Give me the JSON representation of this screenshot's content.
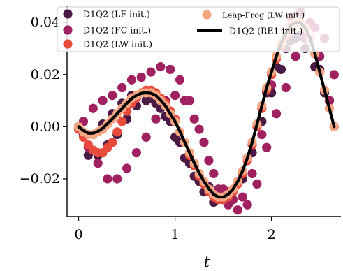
{
  "chart_data": {
    "type": "scatter",
    "title": "",
    "xlabel": "t",
    "ylabel": "",
    "xlim": [
      -0.12,
      2.72
    ],
    "ylim": [
      -0.0345,
      0.0465
    ],
    "xticks": [
      0,
      1,
      2
    ],
    "xtick_labels": [
      "0",
      "1",
      "2"
    ],
    "yticks": [
      -0.02,
      0.0,
      0.02,
      0.04
    ],
    "ytick_labels": [
      "−0.02",
      "0.00",
      "0.02",
      "0.04"
    ],
    "grid": false,
    "legend_position": "top",
    "series": [
      {
        "name": "D1Q2 (LF init.)",
        "kind": "markers",
        "color": "#4a1a45",
        "x": [
          0.0,
          0.05,
          0.1,
          0.15,
          0.2,
          0.25,
          0.3,
          0.35,
          0.4,
          0.45,
          0.5,
          0.55,
          0.6,
          0.65,
          0.7,
          0.75,
          0.8,
          0.85,
          0.9,
          0.95,
          1.0,
          1.05,
          1.1,
          1.15,
          1.2,
          1.25,
          1.3,
          1.35,
          1.4,
          1.45,
          1.5,
          1.55,
          1.6,
          1.65,
          1.7,
          1.75,
          1.8,
          1.85,
          1.9,
          1.95,
          2.0,
          2.05,
          2.1,
          2.15,
          2.2,
          2.25,
          2.3,
          2.35,
          2.4,
          2.45,
          2.5,
          2.55,
          2.6,
          2.65
        ],
        "values": [
          0.0,
          -0.003,
          -0.011,
          -0.003,
          -0.011,
          0.001,
          -0.007,
          0.005,
          -0.003,
          0.009,
          0.003,
          0.012,
          0.008,
          0.013,
          0.01,
          0.011,
          0.009,
          0.007,
          0.004,
          0.002,
          -0.004,
          -0.006,
          -0.012,
          -0.014,
          -0.019,
          -0.021,
          -0.025,
          -0.023,
          -0.029,
          -0.024,
          -0.027,
          -0.025,
          -0.028,
          -0.021,
          -0.02,
          -0.012,
          -0.01,
          0.001,
          0.002,
          0.013,
          0.013,
          0.023,
          0.022,
          0.03,
          0.033,
          0.034,
          0.035,
          0.03,
          0.034,
          0.023,
          0.022,
          0.013,
          0.01,
          0.0
        ]
      },
      {
        "name": "D1Q2 (FC init.)",
        "kind": "markers",
        "color": "#a0215f",
        "x": [
          0.0,
          0.05,
          0.1,
          0.15,
          0.2,
          0.25,
          0.3,
          0.35,
          0.4,
          0.45,
          0.5,
          0.55,
          0.6,
          0.65,
          0.7,
          0.75,
          0.8,
          0.85,
          0.9,
          0.95,
          1.0,
          1.05,
          1.1,
          1.15,
          1.2,
          1.25,
          1.3,
          1.35,
          1.4,
          1.45,
          1.5,
          1.55,
          1.6,
          1.65,
          1.7,
          1.75,
          1.8,
          1.85,
          1.9,
          1.95,
          2.0,
          2.05,
          2.1,
          2.15,
          2.2,
          2.25,
          2.3,
          2.35,
          2.4,
          2.45,
          2.5,
          2.55,
          2.6,
          2.65
        ],
        "values": [
          0.0,
          0.002,
          -0.008,
          0.007,
          -0.014,
          0.01,
          -0.02,
          0.012,
          -0.02,
          0.015,
          -0.016,
          0.018,
          -0.01,
          0.019,
          -0.004,
          0.021,
          0.003,
          0.023,
          0.01,
          0.022,
          0.012,
          0.018,
          0.01,
          0.01,
          0.003,
          -0.001,
          -0.006,
          -0.013,
          -0.018,
          -0.024,
          -0.024,
          -0.03,
          -0.028,
          -0.032,
          -0.027,
          -0.03,
          -0.018,
          -0.022,
          -0.003,
          -0.008,
          0.016,
          0.005,
          0.032,
          0.015,
          0.042,
          0.027,
          0.044,
          0.034,
          0.04,
          0.038,
          0.027,
          0.034,
          0.01,
          0.02
        ]
      },
      {
        "name": "D1Q2 (LW init.)",
        "kind": "markers",
        "color": "#e84a3c",
        "x": [
          0.0,
          0.05,
          0.1,
          0.15,
          0.2,
          0.25,
          0.3,
          0.35,
          0.4,
          0.45,
          0.5,
          0.55,
          0.6,
          0.65,
          0.7,
          0.75,
          0.8,
          0.85,
          0.9,
          0.95,
          1.0,
          1.05,
          1.1,
          1.15,
          1.2,
          1.25,
          1.3,
          1.35,
          1.4,
          1.45,
          1.5,
          1.55,
          1.6,
          1.65,
          1.7,
          1.75,
          1.8,
          1.85,
          1.9,
          1.95,
          2.0,
          2.05,
          2.1,
          2.15,
          2.2,
          2.25,
          2.3,
          2.35,
          2.4,
          2.45,
          2.5,
          2.55,
          2.6,
          2.65
        ],
        "values": [
          -0.001,
          -0.004,
          -0.007,
          -0.009,
          -0.01,
          -0.01,
          -0.008,
          -0.006,
          -0.002,
          0.002,
          0.006,
          0.009,
          0.011,
          0.013,
          0.014,
          0.014,
          0.013,
          0.011,
          0.009,
          0.006,
          0.003,
          -0.002,
          -0.006,
          -0.011,
          -0.015,
          -0.019,
          -0.022,
          -0.025,
          -0.027,
          -0.028,
          -0.028,
          -0.027,
          -0.025,
          -0.022,
          -0.018,
          -0.013,
          -0.007,
          0.0,
          0.007,
          0.014,
          0.02,
          0.026,
          0.031,
          0.035,
          0.038,
          0.04,
          0.04,
          0.038,
          0.034,
          0.028,
          0.021,
          0.014,
          0.007,
          0.0
        ]
      },
      {
        "name": "Leap-Frog (LW init.)",
        "kind": "markers",
        "color": "#f4a582",
        "x": [
          0.0,
          0.05,
          0.1,
          0.15,
          0.2,
          0.25,
          0.3,
          0.35,
          0.4,
          0.45,
          0.5,
          0.55,
          0.6,
          0.65,
          0.7,
          0.75,
          0.8,
          0.85,
          0.9,
          0.95,
          1.0,
          1.05,
          1.1,
          1.15,
          1.2,
          1.25,
          1.3,
          1.35,
          1.4,
          1.45,
          1.5,
          1.55,
          1.6,
          1.65,
          1.7,
          1.75,
          1.8,
          1.85,
          1.9,
          1.95,
          2.0,
          2.05,
          2.1,
          2.15,
          2.2,
          2.25,
          2.3,
          2.35,
          2.4,
          2.45,
          2.5,
          2.55,
          2.6,
          2.65
        ],
        "values": [
          0.0,
          -0.002,
          -0.003,
          -0.003,
          -0.002,
          -0.001,
          0.001,
          0.003,
          0.005,
          0.007,
          0.009,
          0.011,
          0.012,
          0.013,
          0.013,
          0.013,
          0.012,
          0.01,
          0.008,
          0.005,
          0.002,
          -0.002,
          -0.006,
          -0.01,
          -0.014,
          -0.018,
          -0.021,
          -0.024,
          -0.026,
          -0.027,
          -0.027,
          -0.026,
          -0.024,
          -0.021,
          -0.017,
          -0.012,
          -0.006,
          0.001,
          0.008,
          0.015,
          0.021,
          0.027,
          0.032,
          0.036,
          0.039,
          0.04,
          0.04,
          0.038,
          0.034,
          0.028,
          0.021,
          0.014,
          0.007,
          0.0
        ]
      },
      {
        "name": "D1Q2 (RE1 init.)",
        "kind": "line",
        "color": "#000000",
        "x": [
          0.0,
          0.05,
          0.1,
          0.15,
          0.2,
          0.25,
          0.3,
          0.35,
          0.4,
          0.45,
          0.5,
          0.55,
          0.6,
          0.65,
          0.7,
          0.75,
          0.8,
          0.85,
          0.9,
          0.95,
          1.0,
          1.05,
          1.1,
          1.15,
          1.2,
          1.25,
          1.3,
          1.35,
          1.4,
          1.45,
          1.5,
          1.55,
          1.6,
          1.65,
          1.7,
          1.75,
          1.8,
          1.85,
          1.9,
          1.95,
          2.0,
          2.05,
          2.1,
          2.15,
          2.2,
          2.25,
          2.3,
          2.35,
          2.4,
          2.45,
          2.5,
          2.55,
          2.6,
          2.65
        ],
        "values": [
          0.0,
          -0.0015,
          -0.0025,
          -0.0025,
          -0.0018,
          -0.0006,
          0.0012,
          0.003,
          0.005,
          0.007,
          0.009,
          0.0108,
          0.012,
          0.0128,
          0.013,
          0.0128,
          0.012,
          0.0102,
          0.008,
          0.005,
          0.002,
          -0.0018,
          -0.006,
          -0.01,
          -0.014,
          -0.0178,
          -0.021,
          -0.0238,
          -0.026,
          -0.027,
          -0.027,
          -0.026,
          -0.024,
          -0.021,
          -0.017,
          -0.012,
          -0.006,
          0.001,
          0.008,
          0.015,
          0.021,
          0.027,
          0.032,
          0.036,
          0.039,
          0.04,
          0.04,
          0.038,
          0.034,
          0.028,
          0.021,
          0.014,
          0.007,
          0.0
        ]
      }
    ]
  }
}
